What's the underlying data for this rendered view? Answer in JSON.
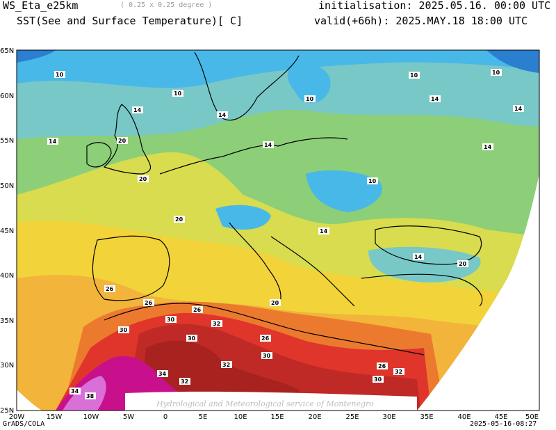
{
  "header": {
    "model": "WS_Eta_e25km",
    "resolution": "( 0.25 x 0.25 degree )",
    "field": "SST(See and Surface Temperature)[ C]",
    "init": "initialisation: 2025.05.16. 00:00 UTC",
    "valid": "valid(+66h): 2025.MAY.18 18:00 UTC"
  },
  "footer": {
    "software": "GrADS/COLA",
    "timestamp": "2025-05-16-08:27"
  },
  "watermark": "Hydrological and Meteorological service of Montenegro",
  "axes": {
    "lon_labels": [
      "20W",
      "15W",
      "10W",
      "5W",
      "0",
      "5E",
      "10E",
      "15E",
      "20E",
      "25E",
      "30E",
      "35E",
      "40E",
      "45E",
      "50E"
    ],
    "lat_labels": [
      "65N",
      "60N",
      "55N",
      "50N",
      "45N",
      "40N",
      "35N",
      "30N",
      "25N"
    ]
  },
  "contour_labels": [
    "10",
    "14",
    "20",
    "26",
    "30",
    "32",
    "34",
    "38"
  ],
  "colors": {
    "c10_deep": "#2a7fd0",
    "c10": "#48b8e8",
    "c14": "#78c8c8",
    "c17": "#8ccf78",
    "c20": "#d8dc4e",
    "c23": "#f2d33a",
    "c26": "#f2b43a",
    "c28": "#ec7a2e",
    "c30": "#e0352a",
    "c32": "#c02a26",
    "c34": "#a0201e",
    "c36": "#c8108c",
    "c38": "#d870d8"
  }
}
